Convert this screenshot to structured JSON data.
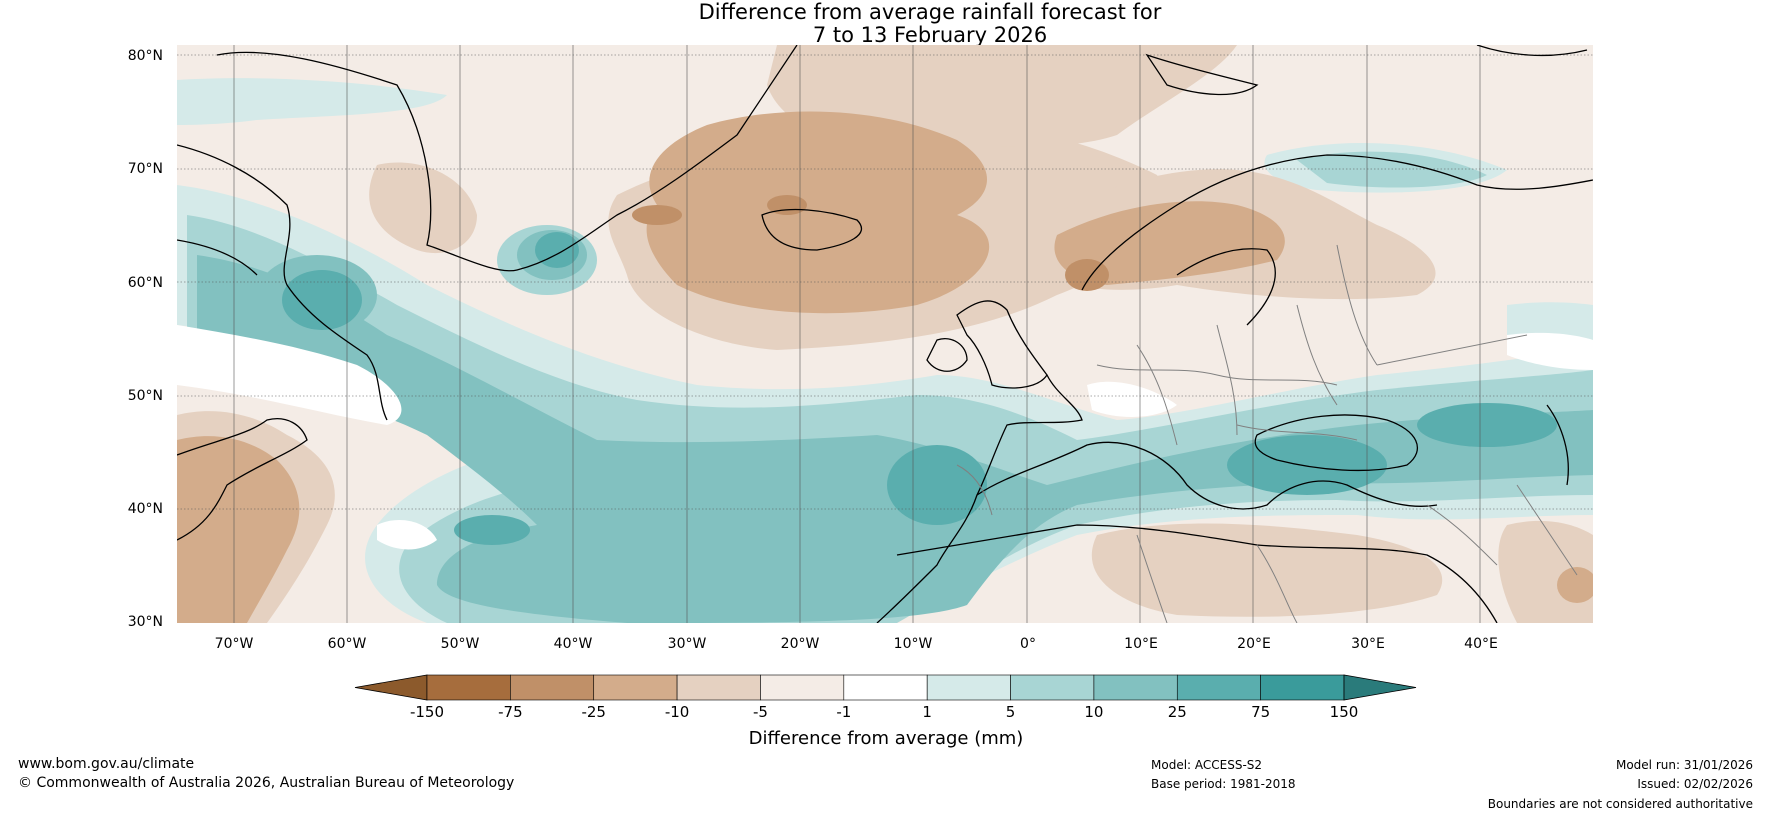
{
  "title": {
    "line1": "Difference from average rainfall forecast for",
    "line2": "7 to 13 February 2026"
  },
  "map": {
    "lat_labels": [
      "80°N",
      "70°N",
      "60°N",
      "50°N",
      "40°N",
      "30°N"
    ],
    "lon_labels": [
      "70°W",
      "60°W",
      "50°W",
      "40°W",
      "30°W",
      "20°W",
      "10°W",
      "0°",
      "10°E",
      "20°E",
      "30°E",
      "40°E"
    ],
    "lat_range": [
      30,
      81
    ],
    "lon_range": [
      -75,
      50
    ]
  },
  "colorbar": {
    "ticks": [
      "-150",
      "-75",
      "-25",
      "-10",
      "-5",
      "-1",
      "1",
      "5",
      "10",
      "25",
      "75",
      "150"
    ],
    "colors": [
      "#8c5a2c",
      "#a66d3d",
      "#c09068",
      "#d3ac8b",
      "#e5d1c1",
      "#f4ece6",
      "#ffffff",
      "#d5eae9",
      "#a8d5d4",
      "#82c1c0",
      "#5aaeae",
      "#3a9b9b",
      "#2a7b7b"
    ],
    "label": "Difference from average (mm)"
  },
  "footer": {
    "website": "www.bom.gov.au/climate",
    "copyright": "© Commonwealth of Australia 2026, Australian Bureau of Meteorology",
    "model": "Model: ACCESS-S2",
    "base_period": "Base period: 1981-2018",
    "model_run": "Model run: 31/01/2026",
    "issued": "Issued: 02/02/2026",
    "disclaimer": "Boundaries are not considered authoritative"
  },
  "style": {
    "grid_color": "#555555",
    "coast_color": "#000000",
    "border_color": "#808080"
  }
}
